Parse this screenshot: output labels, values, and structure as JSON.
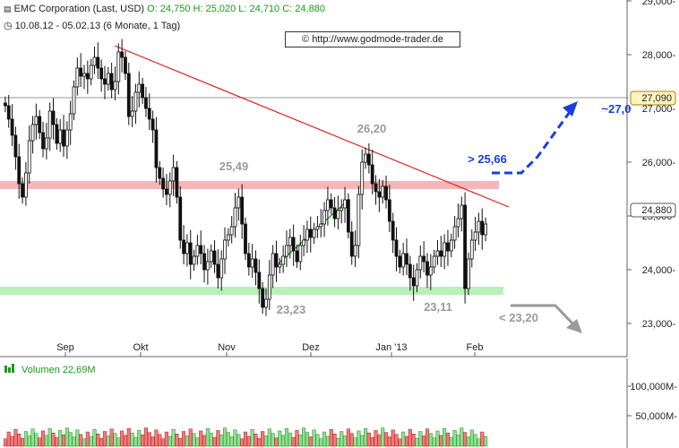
{
  "header": {
    "instrument": "EMC Corporation (Last, USD)",
    "open": "O: 24,750",
    "high": "H: 25,020",
    "low": "L: 24,710",
    "close": "C: 24,880",
    "period": "10.08.12 - 05.02.13 (6 Monate, 1 Tag)",
    "source": "© http://www.godmode-trader.de"
  },
  "chart_data": {
    "type": "candlestick",
    "x_ticks": [
      "Sep",
      "Okt",
      "Nov",
      "Dez",
      "Jan '13",
      "Feb"
    ],
    "y_ticks": [
      "29,000-",
      "28,000-",
      "27,000-",
      "26,000-",
      "25,000-",
      "24,000-",
      "23,000-"
    ],
    "ylim": [
      22.6,
      29.1
    ],
    "last_price_label": "24,880",
    "target_price_label": "27,090",
    "annotations": [
      "25,49",
      "26,20",
      "23,23",
      "23,11",
      "> 25,66",
      "~27,0",
      "< 23,20"
    ],
    "levels": {
      "resistance_zone": 25.49,
      "support_zone": 23.23,
      "horizontal_line": 27.09
    },
    "volume": {
      "label": "Volumen  22,69M",
      "y_ticks": [
        "100,000M-",
        "50,000M-"
      ],
      "ylim": [
        0,
        130
      ]
    },
    "series": [
      {
        "name": "EMC Corporation (Last, USD)",
        "close": [
          27.05,
          26.8,
          26.5,
          26.1,
          25.6,
          25.35,
          25.8,
          26.4,
          26.7,
          26.85,
          26.55,
          26.25,
          26.45,
          26.95,
          26.7,
          26.35,
          26.6,
          26.3,
          26.6,
          26.9,
          27.4,
          27.75,
          27.6,
          27.65,
          27.55,
          27.8,
          27.95,
          27.75,
          27.55,
          27.45,
          27.65,
          27.35,
          27.5,
          28.05,
          27.95,
          27.65,
          26.85,
          26.95,
          27.3,
          27.45,
          27.2,
          27.0,
          26.8,
          26.6,
          25.9,
          25.7,
          25.5,
          25.4,
          25.65,
          25.9,
          25.35,
          24.55,
          24.3,
          24.5,
          24.1,
          24.25,
          24.45,
          24.3,
          24.0,
          24.15,
          24.35,
          24.1,
          23.85,
          24.2,
          24.55,
          24.65,
          24.8,
          25.15,
          25.35,
          24.85,
          24.3,
          24.05,
          24.2,
          23.95,
          23.65,
          23.3,
          23.45,
          23.9,
          24.3,
          24.05,
          24.1,
          24.25,
          24.45,
          24.6,
          24.35,
          24.15,
          24.45,
          24.55,
          24.75,
          24.6,
          24.75,
          24.8,
          24.85,
          25.1,
          25.3,
          25.15,
          24.95,
          25.1,
          25.15,
          25.3,
          24.7,
          24.25,
          24.45,
          25.4,
          26.0,
          26.15,
          25.95,
          25.6,
          25.45,
          25.35,
          25.55,
          25.3,
          24.9,
          24.55,
          24.25,
          24.05,
          24.3,
          24.1,
          23.85,
          23.7,
          24.0,
          24.25,
          24.15,
          23.9,
          24.05,
          24.25,
          24.35,
          24.25,
          24.5,
          24.35,
          24.55,
          24.8,
          24.95,
          25.2,
          23.65,
          24.2,
          24.55,
          24.7,
          24.9,
          24.65,
          24.85
        ]
      }
    ]
  }
}
